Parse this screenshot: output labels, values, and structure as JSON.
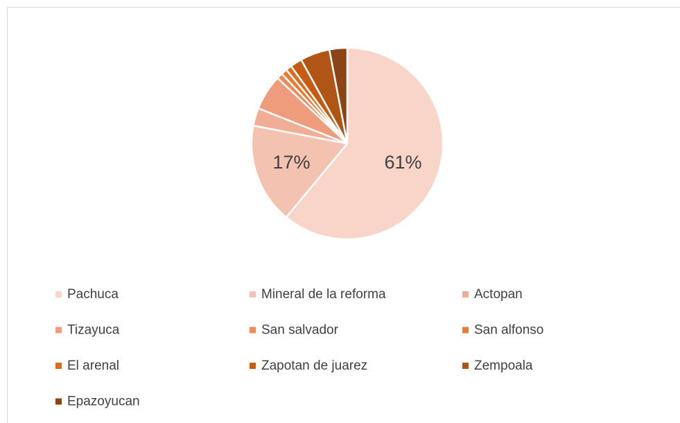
{
  "chart_data": {
    "type": "pie",
    "categories": [
      "Pachuca",
      "Mineral de la reforma",
      "Actopan",
      "Tizayuca",
      "San salvador",
      "San alfonso",
      "El arenal",
      "Zapotan de juarez",
      "Zempoala",
      "Epazoyucan"
    ],
    "values": [
      61,
      17,
      3,
      6,
      1,
      1,
      1,
      2,
      5,
      3
    ],
    "value_labels": [
      "61%",
      "17%",
      null,
      null,
      null,
      null,
      null,
      null,
      null,
      null
    ],
    "colors": [
      "#f8d5c8",
      "#f4c2b0",
      "#f1ad95",
      "#ef9c7c",
      "#ec8a58",
      "#e97a30",
      "#dc6b1e",
      "#c65c14",
      "#b05516",
      "#8c4315"
    ],
    "legend": "bottom"
  }
}
